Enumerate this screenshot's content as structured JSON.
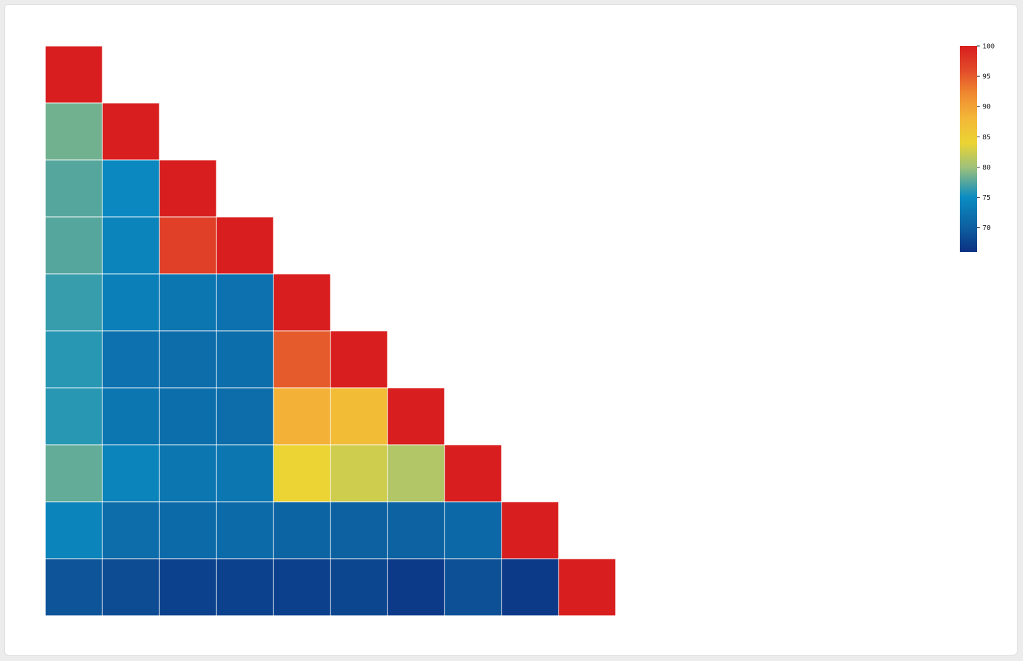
{
  "chart_data": {
    "type": "heatmap",
    "layout": "lower-triangle",
    "title": "",
    "xlabel": "",
    "ylabel": "",
    "rows": [
      [
        100
      ],
      [
        78.5,
        100
      ],
      [
        77.5,
        74.5,
        100
      ],
      [
        77.5,
        74.0,
        97.0,
        100
      ],
      [
        76.5,
        73.5,
        72.5,
        72.0,
        100
      ],
      [
        76.0,
        72.0,
        71.5,
        71.8,
        95.0,
        100
      ],
      [
        76.0,
        72.5,
        71.8,
        71.5,
        88.5,
        87.5,
        100
      ],
      [
        78.0,
        74.0,
        72.5,
        72.5,
        84.0,
        82.5,
        81.0,
        100
      ],
      [
        74.0,
        71.5,
        71.2,
        71.2,
        70.5,
        70.2,
        70.3,
        71.0,
        100
      ],
      [
        69.0,
        68.3,
        67.5,
        67.5,
        67.3,
        67.8,
        66.8,
        68.7,
        66.8,
        100
      ]
    ],
    "colorbar": {
      "min": 66,
      "max": 100,
      "ticks": [
        "100",
        "95",
        "90",
        "85",
        "80",
        "75",
        "70"
      ],
      "stops": [
        {
          "value": 66,
          "color": "#0c3182"
        },
        {
          "value": 70,
          "color": "#0d5fa0"
        },
        {
          "value": 75,
          "color": "#0a8cc2"
        },
        {
          "value": 80,
          "color": "#9fc17a"
        },
        {
          "value": 84,
          "color": "#ebd433"
        },
        {
          "value": 88,
          "color": "#f3b838"
        },
        {
          "value": 92,
          "color": "#f08b31"
        },
        {
          "value": 96,
          "color": "#e24b2a"
        },
        {
          "value": 100,
          "color": "#d81e1e"
        }
      ]
    },
    "grid_line_color": "#ffffff"
  }
}
